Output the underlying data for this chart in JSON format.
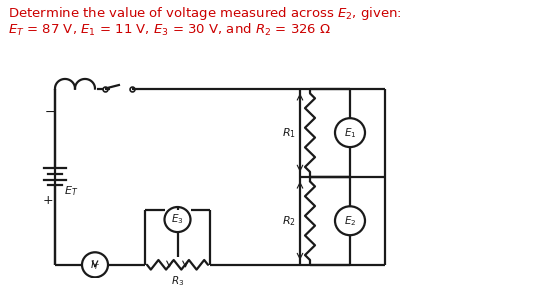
{
  "title_line1": "Determine the value of voltage measured across $E_{2}$, given:",
  "title_line2": "$E_T$ = 87 V, $E_1$ = 11 V, $E_3$ = 30 V, and $R_2$ = 326 Ω",
  "bg_color": "#ffffff",
  "text_color": "#cc0000",
  "circuit_color": "#1a1a1a",
  "figsize": [
    5.52,
    2.89
  ],
  "dpi": 100,
  "lw": 1.6
}
